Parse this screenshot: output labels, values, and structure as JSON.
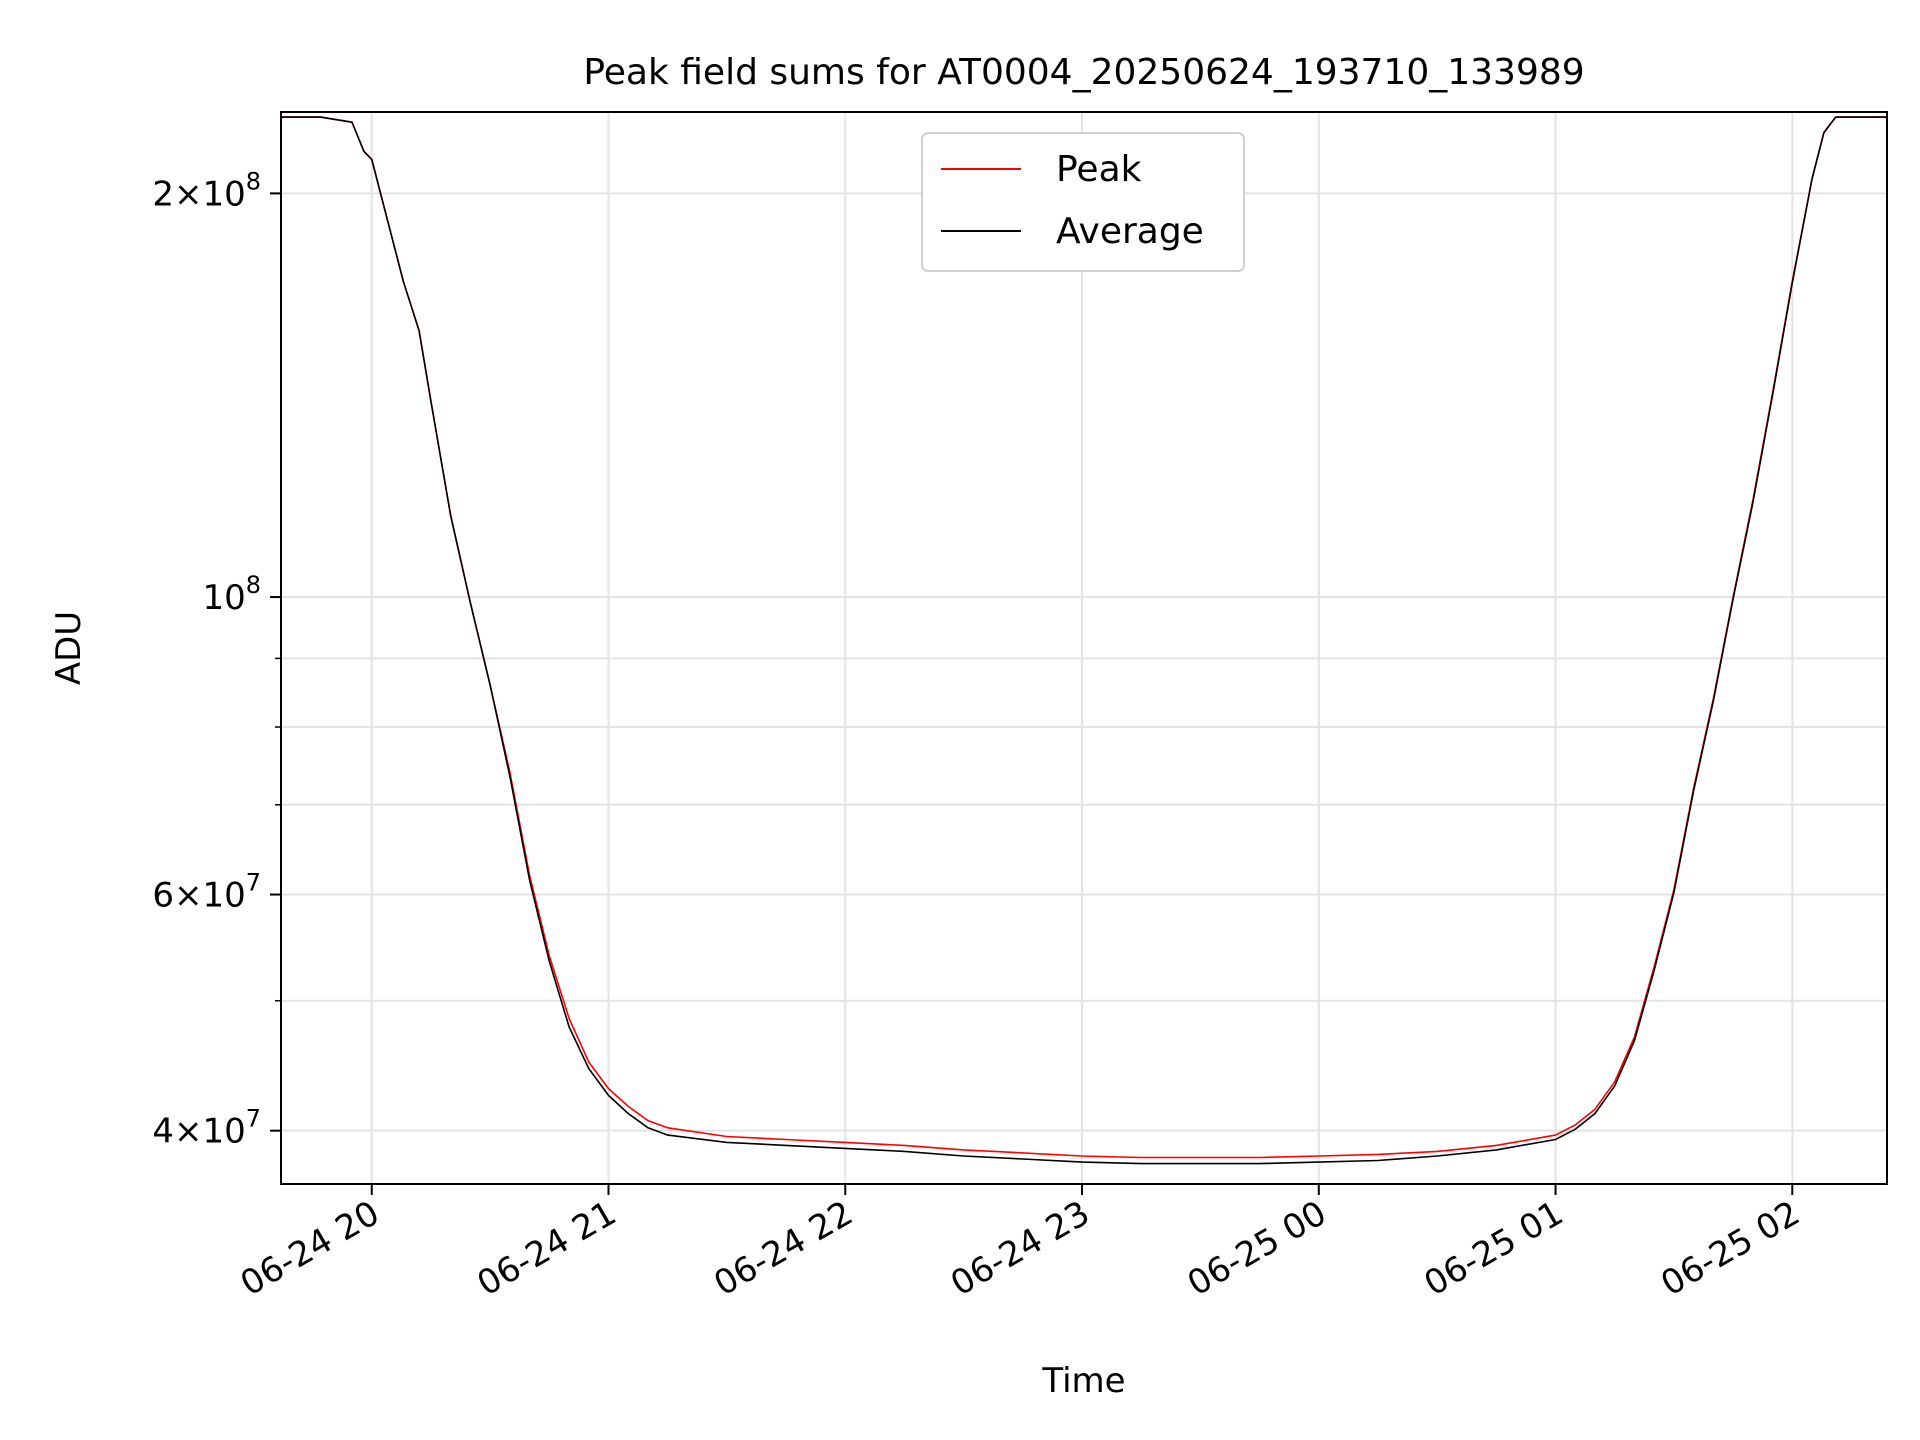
{
  "chart_data": {
    "type": "line",
    "title": "Peak field sums for AT0004_20250624_193710_133989",
    "xlabel": "Time",
    "ylabel": "ADU",
    "yscale": "log",
    "ylim": [
      36500000,
      230000000
    ],
    "xlim": [
      "2025-06-24 19:37",
      "2025-06-25 02:24"
    ],
    "grid": true,
    "legend_position": "top-center",
    "x_ticks": [
      {
        "t": "2025-06-24 20:00",
        "label": "06-24 20"
      },
      {
        "t": "2025-06-24 21:00",
        "label": "06-24 21"
      },
      {
        "t": "2025-06-24 22:00",
        "label": "06-24 22"
      },
      {
        "t": "2025-06-24 23:00",
        "label": "06-24 23"
      },
      {
        "t": "2025-06-25 00:00",
        "label": "06-25 00"
      },
      {
        "t": "2025-06-25 01:00",
        "label": "06-25 01"
      },
      {
        "t": "2025-06-25 02:00",
        "label": "06-25 02"
      }
    ],
    "y_ticks": [
      {
        "value": 40000000,
        "mantissa": "4",
        "exponent": "7"
      },
      {
        "value": 60000000,
        "mantissa": "6",
        "exponent": "7"
      },
      {
        "value": 100000000,
        "mantissa": "",
        "exponent": "8"
      },
      {
        "value": 200000000,
        "mantissa": "2",
        "exponent": "8"
      }
    ],
    "y_minor_gridlines": [
      50000000,
      70000000,
      80000000,
      90000000
    ],
    "series": [
      {
        "name": "Peak",
        "color": "#ff0000",
        "x": [
          "2025-06-24 19:37",
          "2025-06-24 19:47",
          "2025-06-24 19:55",
          "2025-06-24 19:58",
          "2025-06-24 20:00",
          "2025-06-24 20:05",
          "2025-06-24 20:08",
          "2025-06-24 20:12",
          "2025-06-24 20:15",
          "2025-06-24 20:20",
          "2025-06-24 20:25",
          "2025-06-24 20:30",
          "2025-06-24 20:35",
          "2025-06-24 20:40",
          "2025-06-24 20:45",
          "2025-06-24 20:50",
          "2025-06-24 20:55",
          "2025-06-24 21:00",
          "2025-06-24 21:05",
          "2025-06-24 21:10",
          "2025-06-24 21:15",
          "2025-06-24 21:30",
          "2025-06-24 21:45",
          "2025-06-24 22:00",
          "2025-06-24 22:15",
          "2025-06-24 22:30",
          "2025-06-24 22:45",
          "2025-06-24 23:00",
          "2025-06-24 23:15",
          "2025-06-24 23:30",
          "2025-06-24 23:45",
          "2025-06-25 00:00",
          "2025-06-25 00:15",
          "2025-06-25 00:30",
          "2025-06-25 00:45",
          "2025-06-25 01:00",
          "2025-06-25 01:05",
          "2025-06-25 01:10",
          "2025-06-25 01:15",
          "2025-06-25 01:20",
          "2025-06-25 01:25",
          "2025-06-25 01:30",
          "2025-06-25 01:35",
          "2025-06-25 01:40",
          "2025-06-25 01:45",
          "2025-06-25 01:50",
          "2025-06-25 01:55",
          "2025-06-25 02:00",
          "2025-06-25 02:05",
          "2025-06-25 02:08",
          "2025-06-25 02:11",
          "2025-06-25 02:24"
        ],
        "y": [
          228000000,
          228000000,
          226000000,
          215000000,
          212000000,
          186000000,
          172000000,
          158000000,
          140000000,
          115000000,
          99000000,
          86000000,
          74000000,
          62000000,
          54000000,
          48500000,
          45000000,
          43000000,
          41700000,
          40700000,
          40200000,
          39600000,
          39400000,
          39200000,
          39000000,
          38700000,
          38500000,
          38300000,
          38200000,
          38200000,
          38200000,
          38300000,
          38400000,
          38600000,
          39000000,
          39700000,
          40400000,
          41500000,
          43500000,
          47000000,
          53000000,
          60500000,
          72000000,
          84000000,
          100000000,
          118000000,
          142000000,
          172000000,
          205000000,
          222000000,
          228000000,
          228000000
        ]
      },
      {
        "name": "Average",
        "color": "#000000",
        "x": [
          "2025-06-24 19:37",
          "2025-06-24 19:47",
          "2025-06-24 19:55",
          "2025-06-24 19:58",
          "2025-06-24 20:00",
          "2025-06-24 20:05",
          "2025-06-24 20:08",
          "2025-06-24 20:12",
          "2025-06-24 20:15",
          "2025-06-24 20:20",
          "2025-06-24 20:25",
          "2025-06-24 20:30",
          "2025-06-24 20:35",
          "2025-06-24 20:40",
          "2025-06-24 20:45",
          "2025-06-24 20:50",
          "2025-06-24 20:55",
          "2025-06-24 21:00",
          "2025-06-24 21:05",
          "2025-06-24 21:10",
          "2025-06-24 21:15",
          "2025-06-24 21:30",
          "2025-06-24 21:45",
          "2025-06-24 22:00",
          "2025-06-24 22:15",
          "2025-06-24 22:30",
          "2025-06-24 22:45",
          "2025-06-24 23:00",
          "2025-06-24 23:15",
          "2025-06-24 23:30",
          "2025-06-24 23:45",
          "2025-06-25 00:00",
          "2025-06-25 00:15",
          "2025-06-25 00:30",
          "2025-06-25 00:45",
          "2025-06-25 01:00",
          "2025-06-25 01:05",
          "2025-06-25 01:10",
          "2025-06-25 01:15",
          "2025-06-25 01:20",
          "2025-06-25 01:25",
          "2025-06-25 01:30",
          "2025-06-25 01:35",
          "2025-06-25 01:40",
          "2025-06-25 01:45",
          "2025-06-25 01:50",
          "2025-06-25 01:55",
          "2025-06-25 02:00",
          "2025-06-25 02:05",
          "2025-06-25 02:08",
          "2025-06-25 02:11",
          "2025-06-25 02:24"
        ],
        "y": [
          228000000,
          228000000,
          226000000,
          215000000,
          212000000,
          186000000,
          172000000,
          158000000,
          140000000,
          115000000,
          99000000,
          86000000,
          73500000,
          61500000,
          53500000,
          47800000,
          44500000,
          42500000,
          41200000,
          40200000,
          39700000,
          39200000,
          39000000,
          38800000,
          38600000,
          38300000,
          38100000,
          37900000,
          37800000,
          37800000,
          37800000,
          37900000,
          38000000,
          38300000,
          38700000,
          39400000,
          40100000,
          41200000,
          43200000,
          46700000,
          52700000,
          60200000,
          71700000,
          83700000,
          99700000,
          117500000,
          141500000,
          171500000,
          205000000,
          222000000,
          228000000,
          228000000
        ]
      }
    ]
  }
}
